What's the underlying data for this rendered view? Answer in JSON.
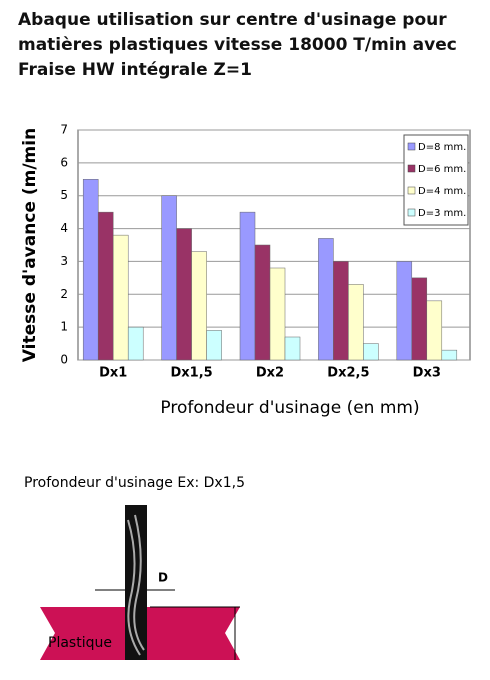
{
  "chart_data": {
    "type": "bar",
    "title": "Abaque utilisation sur centre d'usinage pour matières plastiques vitesse 18000 T/min avec Fraise HW intégrale Z=1",
    "y_label": "Vitesse d'avance (m/min",
    "x_label": "Profondeur d'usinage (en mm)",
    "categories": [
      "Dx1",
      "Dx1,5",
      "Dx2",
      "Dx2,5",
      "Dx3"
    ],
    "series": [
      {
        "name": "D=8 mm.",
        "color": "#9999ff",
        "values": [
          5.5,
          5,
          4.5,
          3.7,
          3
        ]
      },
      {
        "name": "D=6 mm.",
        "color": "#993366",
        "values": [
          4.5,
          4,
          3.5,
          3,
          2.5
        ]
      },
      {
        "name": "D=4 mm.",
        "color": "#ffffcc",
        "values": [
          3.8,
          3.3,
          2.8,
          2.3,
          1.8
        ]
      },
      {
        "name": "D=3 mm.",
        "color": "#ccffff",
        "values": [
          1,
          0.9,
          0.7,
          0.5,
          0.3
        ]
      }
    ],
    "ylim": [
      0,
      7
    ],
    "yticks": [
      0,
      1,
      2,
      3,
      4,
      5,
      6,
      7
    ],
    "grid": true,
    "legend": "top-right"
  },
  "diagram": {
    "caption": "Profondeur d'usinage Ex: Dx1,5",
    "d_label": "D",
    "material_label": "Plastique"
  }
}
